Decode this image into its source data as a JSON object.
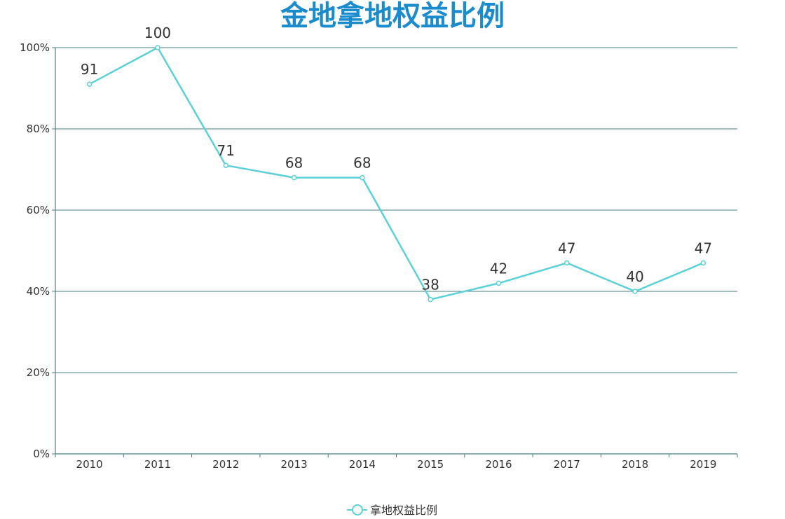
{
  "chart_data": {
    "type": "line",
    "title": "金地拿地权益比例",
    "categories": [
      "2010",
      "2011",
      "2012",
      "2013",
      "2014",
      "2015",
      "2016",
      "2017",
      "2018",
      "2019"
    ],
    "series": [
      {
        "name": "拿地权益比例",
        "values": [
          91,
          100,
          71,
          68,
          68,
          38,
          42,
          47,
          40,
          47
        ],
        "color": "#5bd1d7"
      }
    ],
    "yticks": [
      "0%",
      "20%",
      "40%",
      "60%",
      "80%",
      "100%"
    ],
    "ylim": [
      0,
      100
    ],
    "grid": true,
    "legend_position": "bottom-center",
    "colors": {
      "title": "#1a8bcc",
      "axis": "#4a7f86",
      "grid": "#4a7f86"
    }
  }
}
